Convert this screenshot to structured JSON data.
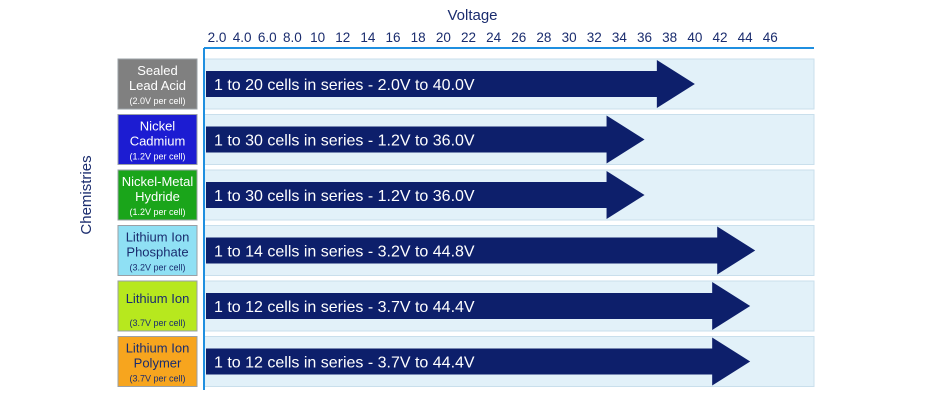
{
  "chart_data": {
    "type": "bar",
    "orientation": "horizontal",
    "title": "Voltage",
    "ylabel": "Chemistries",
    "x_ticks": [
      "2.0",
      "4.0",
      "6.0",
      "8.0",
      "10",
      "12",
      "14",
      "16",
      "18",
      "20",
      "22",
      "24",
      "26",
      "28",
      "30",
      "32",
      "34",
      "36",
      "38",
      "40",
      "42",
      "44",
      "46"
    ],
    "xlim": [
      2.0,
      46
    ],
    "categories": [
      {
        "name": "Sealed Lead Acid",
        "name_lines": [
          "Sealed",
          "Lead Acid"
        ],
        "sub": "(2.0V per cell)",
        "color": "#808080",
        "text_color": "#ffffff"
      },
      {
        "name": "Nickel Cadmium",
        "name_lines": [
          "Nickel",
          "Cadmium"
        ],
        "sub": "(1.2V per cell)",
        "color": "#1c1cd2",
        "text_color": "#ffffff"
      },
      {
        "name": "Nickel-Metal Hydride",
        "name_lines": [
          "Nickel-Metal",
          "Hydride"
        ],
        "sub": "(1.2V per cell)",
        "color": "#1aa51a",
        "text_color": "#ffffff"
      },
      {
        "name": "Lithium Ion Phosphate",
        "name_lines": [
          "Lithium Ion",
          "Phosphate"
        ],
        "sub": "(3.2V per cell)",
        "color": "#8fe0f4",
        "text_color": "#1a2c6e"
      },
      {
        "name": "Lithium Ion",
        "name_lines": [
          "Lithium Ion"
        ],
        "sub": "(3.7V per cell)",
        "color": "#b7e81e",
        "text_color": "#1a2c6e"
      },
      {
        "name": "Lithium Ion Polymer",
        "name_lines": [
          "Lithium Ion",
          "Polymer"
        ],
        "sub": "(3.7V per cell)",
        "color": "#f7a51e",
        "text_color": "#1a2c6e"
      }
    ],
    "values": [
      40.0,
      36.0,
      36.0,
      44.8,
      44.4,
      44.4
    ],
    "labels": [
      "1 to 20 cells in series - 2.0V to 40.0V",
      "1 to 30 cells in series - 1.2V to 36.0V",
      "1 to 30 cells in series - 1.2V to 36.0V",
      "1 to 14 cells in series - 3.2V to 44.8V",
      "1 to 12 cells in series - 3.7V to 44.4V",
      "1 to 12 cells in series - 3.7V to 44.4V"
    ],
    "colors": {
      "arrow": "#0d1f6b",
      "row_band": "#e2f1f9",
      "axis": "#1f8fe0",
      "text": "#1a2c6e"
    },
    "grid": false,
    "legend": "none"
  }
}
